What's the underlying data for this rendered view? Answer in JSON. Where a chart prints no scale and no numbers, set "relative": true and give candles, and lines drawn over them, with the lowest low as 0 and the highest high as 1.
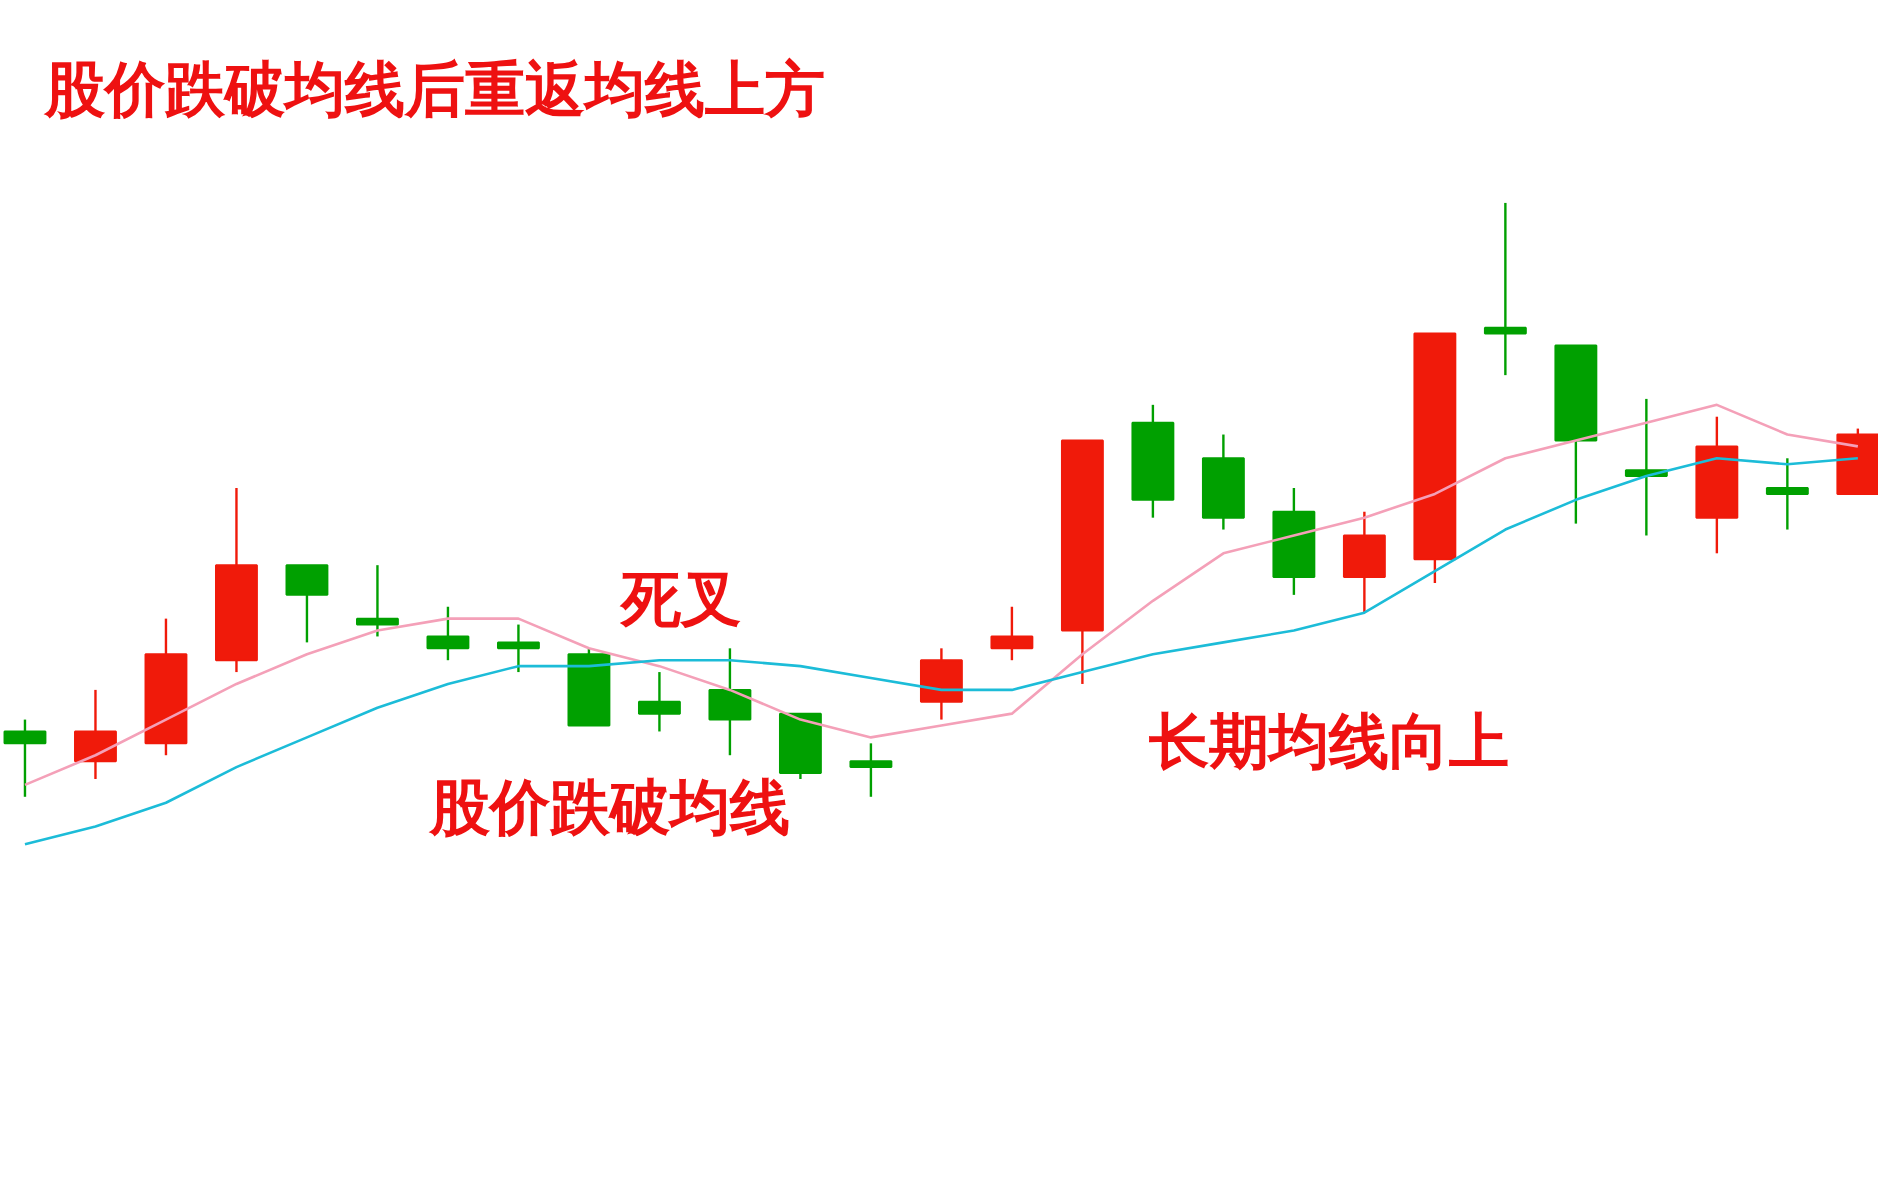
{
  "chart_data": {
    "type": "candlestick",
    "relative": true,
    "title": "股价跌破均线后重返均线上方",
    "annotations": [
      "死叉",
      "股价跌破均线",
      "长期均线向上"
    ],
    "categories": [
      null,
      null,
      null,
      null,
      null,
      null,
      null,
      null,
      null,
      null,
      null,
      null,
      null,
      null,
      null,
      null,
      null,
      null,
      null,
      null,
      null,
      null,
      null,
      null,
      null,
      null,
      null
    ],
    "ohlc": [
      [
        0.11,
        0.13,
        0,
        0.09
      ],
      [
        0.06,
        0.18,
        0.03,
        0.11
      ],
      [
        0.09,
        0.3,
        0.07,
        0.24
      ],
      [
        0.23,
        0.52,
        0.21,
        0.39
      ],
      [
        0.39,
        0.39,
        0.26,
        0.34
      ],
      [
        0.3,
        0.39,
        0.27,
        0.29
      ],
      [
        0.27,
        0.32,
        0.23,
        0.25
      ],
      [
        0.26,
        0.29,
        0.21,
        0.25
      ],
      [
        0.24,
        0.25,
        0.12,
        0.12
      ],
      [
        0.16,
        0.21,
        0.11,
        0.14
      ],
      [
        0.18,
        0.25,
        0.07,
        0.13
      ],
      [
        0.14,
        0.14,
        0.03,
        0.04
      ],
      [
        0.06,
        0.09,
        0,
        0.05
      ],
      [
        0.16,
        0.25,
        0.13,
        0.23
      ],
      [
        0.25,
        0.32,
        0.23,
        0.27
      ],
      [
        0.28,
        0.6,
        0.19,
        0.6
      ],
      [
        0.63,
        0.66,
        0.47,
        0.5
      ],
      [
        0.57,
        0.61,
        0.45,
        0.47
      ],
      [
        0.48,
        0.52,
        0.34,
        0.37
      ],
      [
        0.37,
        0.48,
        0.31,
        0.44
      ],
      [
        0.4,
        0.78,
        0.36,
        0.78
      ],
      [
        0.79,
        1,
        0.71,
        0.78
      ],
      [
        0.76,
        0.76,
        0.46,
        0.6
      ],
      [
        0.55,
        0.67,
        0.44,
        0.54
      ],
      [
        0.47,
        0.64,
        0.41,
        0.59
      ],
      [
        0.52,
        0.57,
        0.45,
        0.51
      ],
      [
        0.51,
        0.62,
        0.51,
        0.61
      ]
    ],
    "colors": [
      "#00a000",
      "#f01a0a",
      "#f01a0a",
      "#f01a0a",
      "#00a000",
      "#00a000",
      "#00a000",
      "#00a000",
      "#00a000",
      "#00a000",
      "#00a000",
      "#00a000",
      "#00a000",
      "#f01a0a",
      "#f01a0a",
      "#f01a0a",
      "#00a000",
      "#00a000",
      "#00a000",
      "#f01a0a",
      "#f01a0a",
      "#00a000",
      "#00a000",
      "#00a000",
      "#f01a0a",
      "#00a000",
      "#f01a0a"
    ],
    "series": [
      {
        "type": "line",
        "color": "#f4a0b8",
        "values": [
          0.02,
          0.07,
          0.13,
          0.19,
          0.24,
          0.28,
          0.3,
          0.3,
          0.25,
          0.22,
          0.18,
          0.13,
          0.1,
          0.12,
          0.14,
          0.24,
          0.33,
          0.41,
          0.44,
          0.47,
          0.51,
          0.57,
          0.6,
          0.63,
          0.66,
          0.61,
          0.59
        ]
      },
      {
        "type": "line",
        "color": "#1cbcd8",
        "values": [
          -0.08,
          -0.05,
          -0.01,
          0.05,
          0.1,
          0.15,
          0.19,
          0.22,
          0.22,
          0.23,
          0.23,
          0.22,
          0.2,
          0.18,
          0.18,
          0.21,
          0.24,
          0.26,
          0.28,
          0.31,
          0.38,
          0.45,
          0.5,
          0.54,
          0.57,
          0.56,
          0.57
        ]
      }
    ]
  }
}
